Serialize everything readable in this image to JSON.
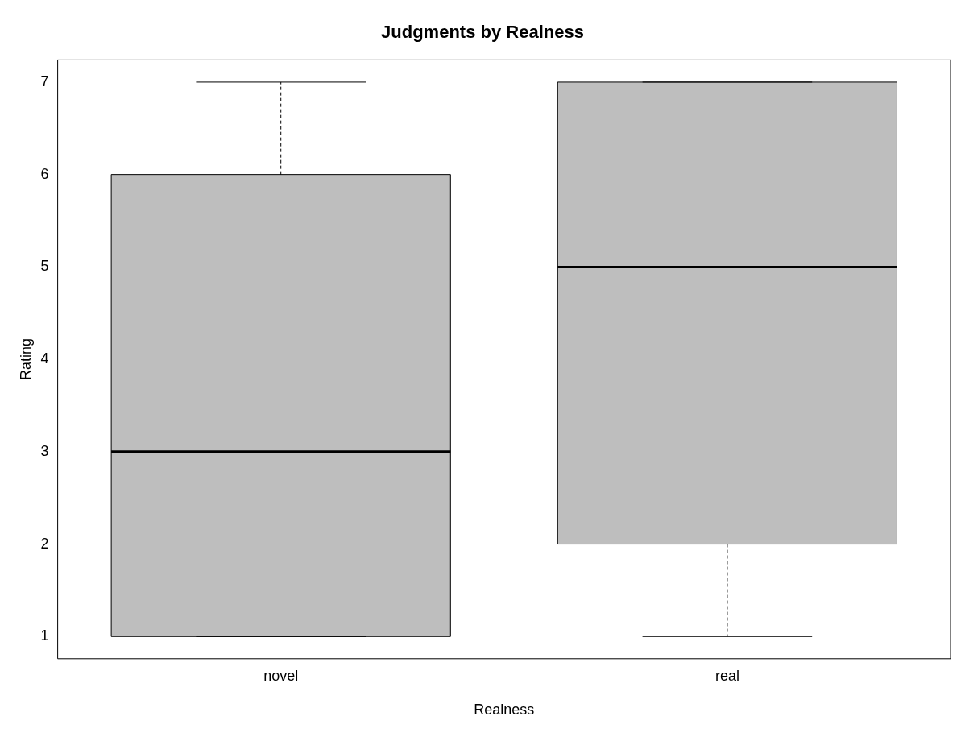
{
  "chart_data": {
    "type": "box",
    "title": "Judgments by Realness",
    "xlabel": "Realness",
    "ylabel": "Rating",
    "categories": [
      "novel",
      "real"
    ],
    "boxes": [
      {
        "low": 1,
        "q1": 1,
        "median": 3,
        "q3": 6,
        "high": 7
      },
      {
        "low": 1,
        "q1": 2,
        "median": 5,
        "q3": 7,
        "high": 7
      }
    ],
    "color": "#bebebe",
    "ylim": [
      0.76,
      7.24
    ],
    "yticks": [
      1,
      2,
      3,
      4,
      5,
      6,
      7
    ],
    "grid": false,
    "legend": false
  }
}
